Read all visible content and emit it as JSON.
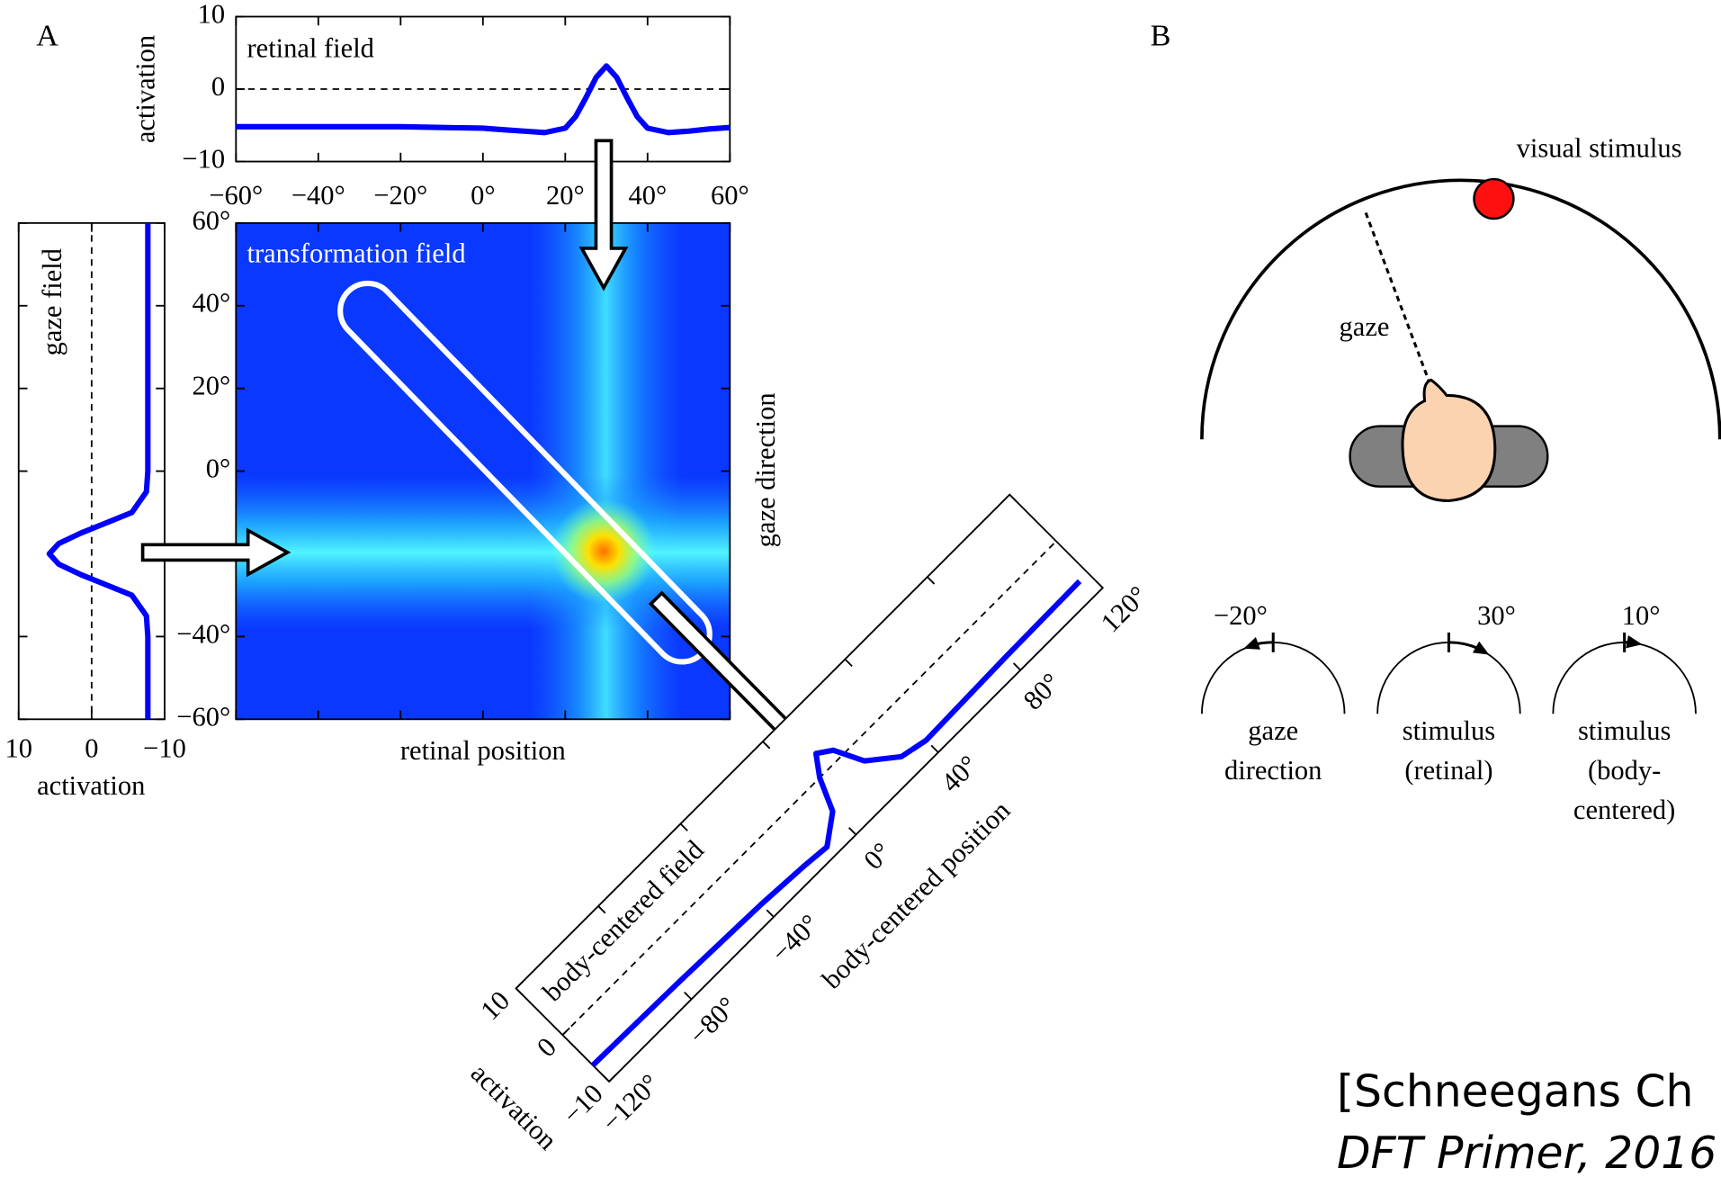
{
  "panel_labels": [
    "A",
    "B"
  ],
  "panel_a": {
    "retinal_field": {
      "title": "retinal field",
      "ylabel": "activation",
      "color": "#0000ff",
      "xlim": [
        -60,
        60
      ],
      "ylim": [
        -10,
        10
      ],
      "xticks": [
        {
          "value": -60,
          "label": "−60°"
        },
        {
          "value": -40,
          "label": "−40°"
        },
        {
          "value": -20,
          "label": "−20°"
        },
        {
          "value": 0,
          "label": "0°"
        },
        {
          "value": 20,
          "label": "20°"
        },
        {
          "value": 40,
          "label": "40°"
        },
        {
          "value": 60,
          "label": "60°"
        }
      ],
      "yticks": [
        {
          "value": -10,
          "label": "−10"
        },
        0,
        10
      ],
      "x": [
        -60,
        -50,
        -40,
        -30,
        -20,
        -10,
        0,
        5,
        10,
        15,
        20,
        22.5,
        25,
        27.5,
        30,
        32.5,
        35,
        37.5,
        40,
        45,
        50,
        55,
        60
      ],
      "values": [
        -5.2,
        -5.2,
        -5.2,
        -5.2,
        -5.2,
        -5.3,
        -5.4,
        -5.6,
        -5.8,
        -6,
        -5.4,
        -3.8,
        -1.2,
        1.6,
        3.2,
        1.6,
        -1.2,
        -3.8,
        -5.4,
        -6,
        -5.8,
        -5.5,
        -5.3
      ]
    },
    "gaze_field": {
      "title": "gaze field",
      "xlabel": "activation",
      "color": "#0000ff",
      "xlim": [
        10,
        -10
      ],
      "ylim": [
        -60,
        60
      ],
      "xticks": [
        10,
        0,
        {
          "value": -10,
          "label": "−10"
        }
      ],
      "y": [
        -60,
        -50,
        -40,
        -35,
        -30,
        -27.5,
        -25,
        -22.5,
        -20,
        -17.5,
        -15,
        -12.5,
        -10,
        -5,
        0,
        10,
        20,
        30,
        40,
        50,
        60
      ],
      "values": [
        -7.7,
        -7.7,
        -7.7,
        -7.5,
        -5.5,
        -2,
        1.5,
        4.5,
        5.8,
        4.5,
        1.5,
        -2,
        -5.5,
        -7.5,
        -7.7,
        -7.7,
        -7.7,
        -7.7,
        -7.7,
        -7.7,
        -7.7
      ]
    },
    "transformation_field": {
      "title": "transformation field",
      "xlabel": "retinal position",
      "ylabel": "gaze direction",
      "ylim": [
        -60,
        60
      ],
      "yticks": [
        {
          "value": 60,
          "label": "60°"
        },
        {
          "value": 40,
          "label": "40°"
        },
        {
          "value": 20,
          "label": "20°"
        },
        {
          "value": 0,
          "label": "0°"
        },
        {
          "value": -40,
          "label": "−40°"
        },
        {
          "value": -60,
          "label": "−60°"
        }
      ]
    },
    "body_centered_field": {
      "title": "body-centered field",
      "xlabel": "body-centered position",
      "ylabel": "activation",
      "color": "#0000ff",
      "xlim": [
        -120,
        120
      ],
      "ylim": [
        -10,
        10
      ],
      "xticks": [
        {
          "value": -120,
          "label": "−120°"
        },
        {
          "value": -80,
          "label": "−80°"
        },
        {
          "value": -40,
          "label": "−40°"
        },
        {
          "value": 0,
          "label": "0°"
        },
        {
          "value": 40,
          "label": "40°"
        },
        {
          "value": 80,
          "label": "80°"
        },
        {
          "value": 120,
          "label": "120°"
        }
      ],
      "yticks": [
        {
          "value": -10,
          "label": "−10"
        },
        0,
        10
      ],
      "x": [
        -120,
        -80,
        -40,
        -20,
        -10,
        0,
        5,
        10,
        15,
        20,
        30,
        40,
        80,
        116
      ],
      "values": [
        -6.5,
        -6.8,
        -7.3,
        -7.8,
        -8.2,
        -5,
        0,
        3,
        1.5,
        -3,
        -6.5,
        -7.4,
        -7,
        -6.8
      ]
    }
  },
  "panel_b": {
    "stimulus_label": "visual stimulus",
    "gaze_label": "gaze",
    "dials": [
      {
        "angle": {
          "value": -20,
          "label": "−20°"
        },
        "caption": [
          "gaze",
          "direction"
        ]
      },
      {
        "angle": {
          "value": 30,
          "label": "30°"
        },
        "caption": [
          "stimulus",
          "(retinal)"
        ]
      },
      {
        "angle": {
          "value": 10,
          "label": "10°"
        },
        "caption": [
          "stimulus",
          "(body-",
          "centered)"
        ]
      }
    ]
  },
  "citation": {
    "line1": "[Schneegans Ch",
    "line2": "DFT Primer, 2016"
  }
}
